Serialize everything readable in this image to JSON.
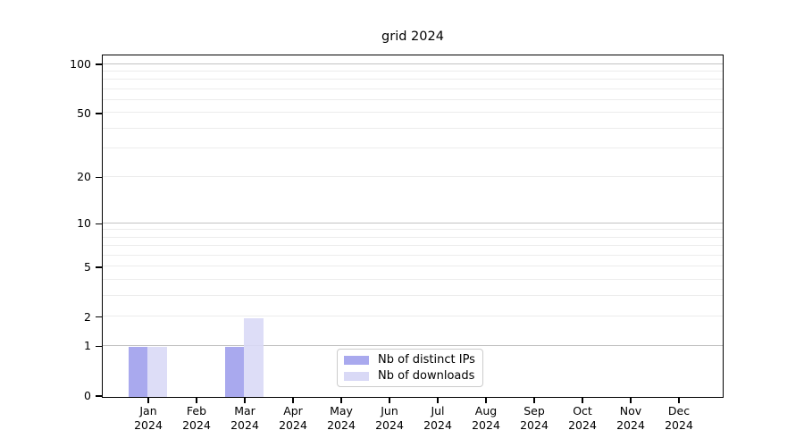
{
  "chart_data": {
    "type": "bar",
    "title": "grid 2024",
    "categories": [
      "Jan",
      "Feb",
      "Mar",
      "Apr",
      "May",
      "Jun",
      "Jul",
      "Aug",
      "Sep",
      "Oct",
      "Nov",
      "Dec"
    ],
    "category_year": "2024",
    "series": [
      {
        "name": "Nb of distinct IPs",
        "color": "#a9a9ee",
        "values": [
          1,
          0,
          1,
          0,
          0,
          0,
          0,
          0,
          0,
          0,
          0,
          0
        ]
      },
      {
        "name": "Nb of downloads",
        "color": "#d9d9f6",
        "values": [
          1,
          0,
          2,
          0,
          0,
          0,
          0,
          0,
          0,
          0,
          0,
          0
        ]
      }
    ],
    "yscale": "log1p",
    "ylim": [
      0,
      112
    ],
    "y_ticks": [
      0,
      1,
      2,
      5,
      10,
      20,
      50,
      100
    ],
    "y_major_gridlines": [
      1,
      10,
      100
    ],
    "y_minor_gridlines": [
      2,
      3,
      4,
      5,
      6,
      7,
      8,
      9,
      20,
      30,
      40,
      50,
      60,
      70,
      80,
      90
    ],
    "grid": true,
    "legend_position": "lower center",
    "xlabel": "",
    "ylabel": ""
  },
  "colors": {
    "axis": "#000000",
    "grid_major": "#c2c2c2",
    "grid_minor": "#ececec",
    "legend_border": "#cccccc",
    "background": "#ffffff",
    "text": "#000000"
  }
}
